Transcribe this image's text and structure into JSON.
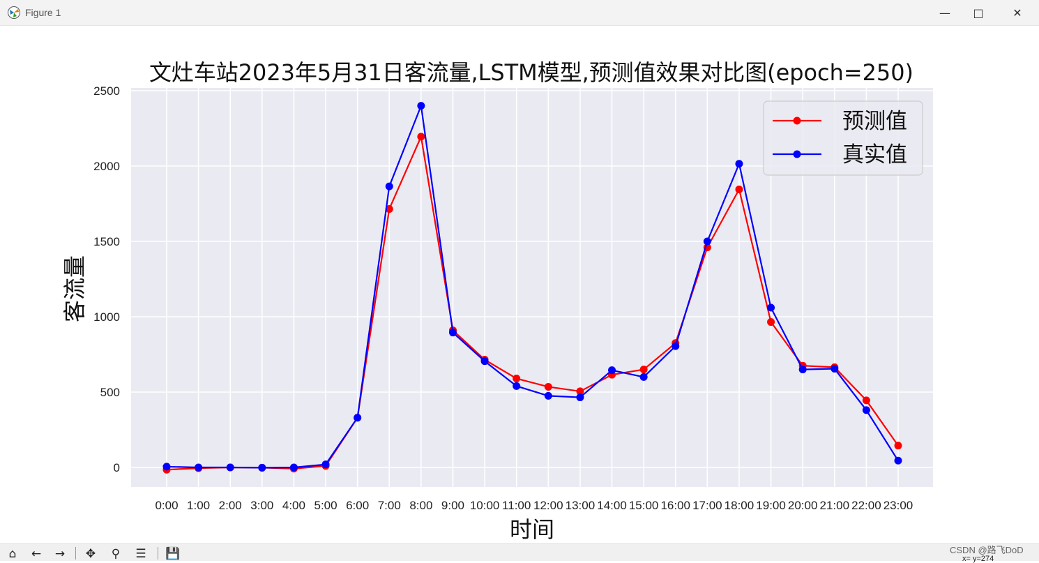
{
  "window": {
    "title": "Figure 1",
    "minimize_icon": "minimize-icon",
    "maximize_icon": "maximize-icon",
    "close_icon": "close-icon"
  },
  "chart_data": {
    "type": "line",
    "title": "文灶车站2023年5月31日客流量,LSTM模型,预测值效果对比图(epoch=250)",
    "xlabel": "时间",
    "ylabel": "客流量",
    "categories": [
      "0:00",
      "1:00",
      "2:00",
      "3:00",
      "4:00",
      "5:00",
      "6:00",
      "7:00",
      "8:00",
      "9:00",
      "10:00",
      "11:00",
      "12:00",
      "13:00",
      "14:00",
      "15:00",
      "16:00",
      "17:00",
      "18:00",
      "19:00",
      "20:00",
      "21:00",
      "22:00",
      "23:00"
    ],
    "yticks": [
      0,
      500,
      1000,
      1500,
      2000,
      2500
    ],
    "ylim": [
      -125,
      2500
    ],
    "grid": true,
    "background": "#eaeaf2",
    "legend_position": "top-right",
    "series": [
      {
        "name": "预测值",
        "color": "#ff0000",
        "values": [
          -15,
          -5,
          0,
          -2,
          -8,
          10,
          330,
          1715,
          2195,
          910,
          715,
          590,
          535,
          505,
          615,
          650,
          825,
          1460,
          1845,
          965,
          675,
          665,
          445,
          145
        ]
      },
      {
        "name": "真实值",
        "color": "#0000ff",
        "values": [
          5,
          0,
          0,
          -2,
          0,
          20,
          330,
          1865,
          2400,
          895,
          705,
          540,
          475,
          465,
          645,
          600,
          805,
          1500,
          2015,
          1060,
          650,
          655,
          380,
          45
        ]
      }
    ]
  },
  "toolbar": {
    "icons": [
      "home-icon",
      "back-icon",
      "forward-icon",
      "pan-icon",
      "zoom-icon",
      "configure-icon",
      "save-icon"
    ]
  },
  "watermark": "CSDN @路飞DoD",
  "status": "x= y=274"
}
